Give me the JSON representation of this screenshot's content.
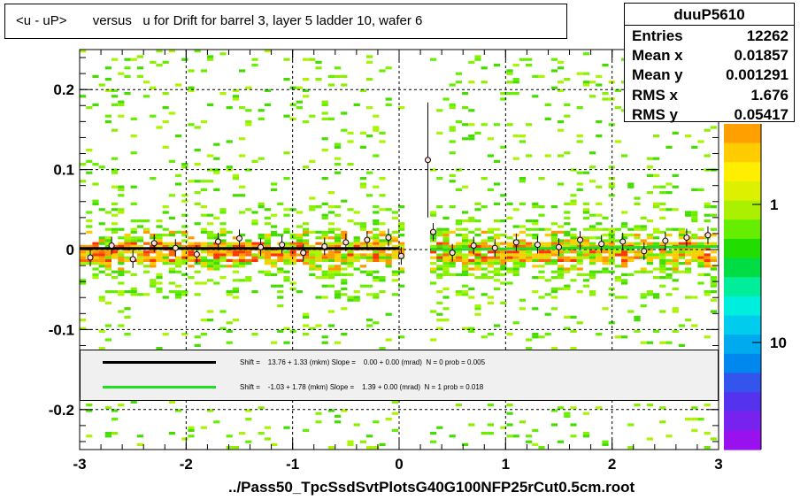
{
  "title": "<u - uP>       versus   u for Drift for barrel 3, layer 5 ladder 10, wafer 6",
  "footer": "../Pass50_TpcSsdSvtPlotsG40G100NFP25rCut0.5cm.root",
  "stats": {
    "name": "duuP5610",
    "rows": [
      {
        "label": "Entries",
        "value": "12262"
      },
      {
        "label": "Mean x",
        "value": "0.01857"
      },
      {
        "label": "Mean y",
        "value": "0.001291"
      },
      {
        "label": "RMS x",
        "value": "1.676"
      },
      {
        "label": "RMS y",
        "value": "0.05417"
      }
    ]
  },
  "legend": {
    "entries": [
      {
        "color": "#000000",
        "text": "Shift =    13.76 + 1.33 (mkm) Slope =    0.00 + 0.00 (mrad)  N = 0 prob = 0.005"
      },
      {
        "color": "#22dd22",
        "text": "Shift =    -1.03 + 1.78 (mkm) Slope =    1.39 + 0.00 (mrad)  N = 1 prob = 0.018"
      }
    ]
  },
  "colorbar": {
    "labels": [
      "1",
      "10"
    ]
  },
  "chart_data": {
    "type": "heatmap",
    "title": "<u - uP>       versus   u for Drift for barrel 3, layer 5 ladder 10, wafer 6",
    "xlabel": "",
    "ylabel": "",
    "xlim": [
      -3,
      3
    ],
    "ylim": [
      -0.25,
      0.25
    ],
    "x_ticks": [
      "-3",
      "-2",
      "-1",
      "0",
      "1",
      "2",
      "3"
    ],
    "y_ticks": [
      "-0.2",
      "-0.1",
      "0",
      "0.1",
      "0.2"
    ],
    "grid": true,
    "series": [
      {
        "name": "fit",
        "color": "#000000",
        "x": [
          -3,
          0
        ],
        "y": [
          0.00138,
          0.00138
        ]
      },
      {
        "name": "fit",
        "color": "#22dd22",
        "x": [
          0.3,
          3
        ],
        "y": [
          -0.0001,
          0.0038
        ]
      }
    ],
    "profile_points": {
      "x": [
        -2.9,
        -2.7,
        -2.5,
        -2.3,
        -2.1,
        -1.9,
        -1.7,
        -1.5,
        -1.3,
        -1.1,
        -0.9,
        -0.7,
        -0.5,
        -0.3,
        -0.1,
        0.02,
        0.27,
        0.32,
        0.5,
        0.7,
        0.9,
        1.1,
        1.3,
        1.5,
        1.7,
        1.9,
        2.1,
        2.3,
        2.5,
        2.7,
        2.9
      ],
      "y": [
        -0.01,
        0.005,
        -0.012,
        0.008,
        0.002,
        -0.006,
        0.01,
        0.014,
        0.003,
        0.006,
        -0.004,
        0.004,
        0.009,
        0.012,
        0.015,
        -0.008,
        0.112,
        0.022,
        -0.004,
        0.005,
        0.002,
        0.009,
        0.006,
        0.003,
        0.012,
        0.007,
        0.01,
        -0.002,
        0.011,
        0.015,
        0.018
      ]
    }
  }
}
